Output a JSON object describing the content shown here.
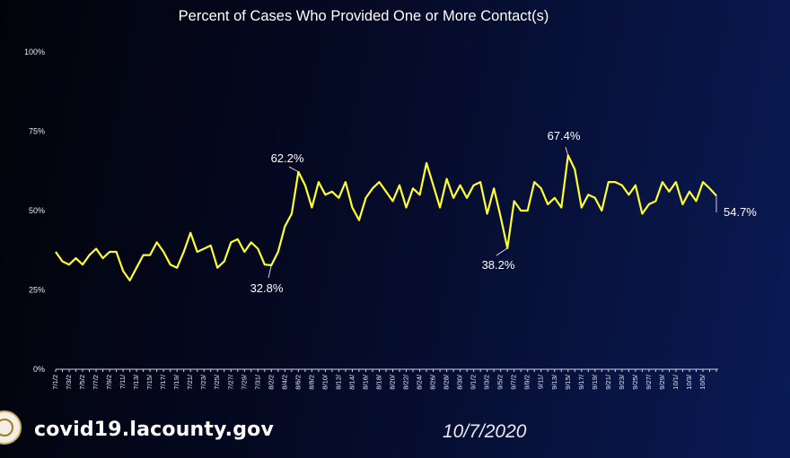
{
  "chart_data": {
    "type": "line",
    "title": "Percent of Cases Who Provided One or More Contact(s)",
    "xlabel": "",
    "ylabel": "",
    "ylim": [
      0,
      100
    ],
    "y_ticks": [
      "0%",
      "25%",
      "50%",
      "75%",
      "100%"
    ],
    "x_tick_labels": [
      "7/1/2",
      "7/3/2",
      "7/5/2",
      "7/7/2",
      "7/9/2",
      "7/11/",
      "7/13/",
      "7/15/",
      "7/17/",
      "7/19/",
      "7/21/",
      "7/23/",
      "7/25/",
      "7/27/",
      "7/29/",
      "7/31/",
      "8/2/2",
      "8/4/2",
      "8/6/2",
      "8/8/2",
      "8/10/",
      "8/12/",
      "8/14/",
      "8/16/",
      "8/18/",
      "8/20/",
      "8/22/",
      "8/24/",
      "8/26/",
      "8/28/",
      "8/30/",
      "9/1/2",
      "9/3/2",
      "9/5/2",
      "9/7/2",
      "9/9/2",
      "9/11/",
      "9/13/",
      "9/15/",
      "9/17/",
      "9/19/",
      "9/21/",
      "9/23/",
      "9/25/",
      "9/27/",
      "9/29/",
      "10/1/",
      "10/3/",
      "10/5/"
    ],
    "color": "#ffff2e",
    "grid": false,
    "series": [
      {
        "values": [
          37,
          34,
          33,
          35,
          33,
          36,
          38,
          35,
          37,
          37,
          31,
          28,
          32,
          36,
          36,
          40,
          37,
          33,
          32,
          37,
          43,
          37,
          38,
          39,
          32,
          34,
          40,
          41,
          37,
          40,
          38,
          33,
          32.8,
          37,
          45,
          49,
          62.2,
          58,
          51,
          59,
          55,
          56,
          54,
          59,
          51,
          47,
          54,
          57,
          59,
          56,
          53,
          58,
          51,
          57,
          55,
          65,
          58,
          51,
          60,
          54,
          58,
          54,
          58,
          59,
          49,
          57,
          48,
          38.2,
          53,
          50,
          50,
          59,
          57,
          52,
          54,
          51,
          67.4,
          63,
          51,
          55,
          54,
          50,
          59,
          59,
          58,
          55,
          58,
          49,
          52,
          53,
          59,
          56,
          59,
          52,
          56,
          53,
          59,
          57,
          54.7
        ]
      }
    ],
    "annotations": [
      {
        "label": "62.2%",
        "x_index": 36,
        "value": 62.2
      },
      {
        "label": "32.8%",
        "x_index": 32,
        "value": 32.8
      },
      {
        "label": "38.2%",
        "x_index": 67,
        "value": 38.2
      },
      {
        "label": "67.4%",
        "x_index": 76,
        "value": 67.4
      },
      {
        "label": "54.7%",
        "x_index": 98,
        "value": 54.7
      }
    ]
  },
  "footer": {
    "url": "covid19.lacounty.gov",
    "date": "10/7/2020"
  }
}
